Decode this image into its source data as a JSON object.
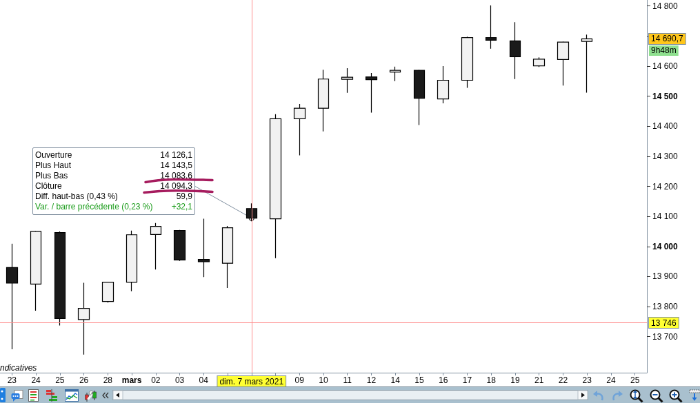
{
  "chart_data": {
    "type": "candlestick",
    "categories": [
      "23",
      "24",
      "25",
      "26",
      "28",
      "mars",
      "02",
      "03",
      "04",
      null,
      "dim. 7 mars 2021",
      null,
      "09",
      "10",
      "11",
      "12",
      "14",
      "15",
      "16",
      "17",
      "18",
      "19",
      "21",
      "22",
      "23",
      "24",
      "25"
    ],
    "ohlc": [
      [
        13930,
        14009,
        13658,
        13878
      ],
      [
        13875,
        14052,
        13786,
        14050
      ],
      [
        14046,
        14050,
        13737,
        13760
      ],
      [
        13757,
        13879,
        13640,
        13794
      ],
      [
        13817,
        13881,
        13813,
        13881
      ],
      [
        13881,
        14053,
        13851,
        14039
      ],
      [
        14040,
        14078,
        13923,
        14067
      ],
      [
        14053,
        14055,
        13952,
        13955
      ],
      [
        13957,
        14092,
        13898,
        13949
      ],
      [
        13944,
        14068,
        13862,
        14062
      ],
      [
        14126.1,
        14143.5,
        14083.6,
        14094.3
      ],
      [
        14092,
        14440,
        13961,
        14425
      ],
      [
        14425,
        14474,
        14303,
        14460
      ],
      [
        14460,
        14588,
        14383,
        14557
      ],
      [
        14556,
        14593,
        14511,
        14563
      ],
      [
        14564,
        14577,
        14445,
        14555
      ],
      [
        14580,
        14598,
        14550,
        14586
      ],
      [
        14586,
        14588,
        14404,
        14493
      ],
      [
        14491,
        14600,
        14476,
        14553
      ],
      [
        14553,
        14698,
        14528,
        14695
      ],
      [
        14695,
        14802,
        14658,
        14686
      ],
      [
        14684,
        14746,
        14557,
        14631
      ],
      [
        14601,
        14629,
        14597,
        14623
      ],
      [
        14622,
        14682,
        14535,
        14680
      ],
      [
        14682,
        14705,
        14512,
        14690.7
      ],
      null,
      null
    ],
    "colors": [
      "#1a1a1a",
      "#f2f2f2",
      "#1a1a1a",
      "#f2f2f2",
      "#f2f2f2",
      "#f2f2f2",
      "#f2f2f2",
      "#1a1a1a",
      "#1a1a1a",
      "#f2f2f2",
      "#1a1a1a",
      "#f2f2f2",
      "#f2f2f2",
      "#f2f2f2",
      "#f2f2f2",
      "#1a1a1a",
      "#f2f2f2",
      "#1a1a1a",
      "#f2f2f2",
      "#f2f2f2",
      "#1a1a1a",
      "#1a1a1a",
      "#f2f2f2",
      "#f2f2f2",
      "#f2f2f2",
      null,
      null
    ],
    "ylim": [
      13580,
      14820
    ],
    "yticks": [
      {
        "value": 13700,
        "label": "13 700"
      },
      {
        "value": 13800,
        "label": "13 800"
      },
      {
        "value": 13900,
        "label": "13 900"
      },
      {
        "value": 14000,
        "label": "14 000"
      },
      {
        "value": 14100,
        "label": "14 100"
      },
      {
        "value": 14200,
        "label": "14 200"
      },
      {
        "value": 14300,
        "label": "14 300"
      },
      {
        "value": 14400,
        "label": "14 400"
      },
      {
        "value": 14500,
        "label": "14 500"
      },
      {
        "value": 14600,
        "label": "14 600"
      },
      {
        "value": 14700,
        "label": null
      },
      {
        "value": 14800,
        "label": "14 800"
      }
    ],
    "ref_lines": [
      {
        "axis": "x",
        "value": "dim. 7 mars 2021",
        "color": "#ff8c8c"
      },
      {
        "axis": "y",
        "value": 13746,
        "label": "13 746",
        "color": "#ff8c8c"
      }
    ],
    "annotations": [
      "Ouverture",
      "14 126,1",
      "Plus Haut",
      "14 143,5",
      "Plus Bas",
      "14 083,6",
      "Clôture",
      {
        "text": "14 094,3",
        "x": "dim. 7 mars 2021",
        "y": 14094.3
      },
      "Diff. haut-bas (0,43 %)",
      "59,9",
      "Var. / barre précédente (0,23 %)",
      "+32,1",
      "14 690,7",
      "9h48m",
      "ndicatives"
    ]
  }
}
